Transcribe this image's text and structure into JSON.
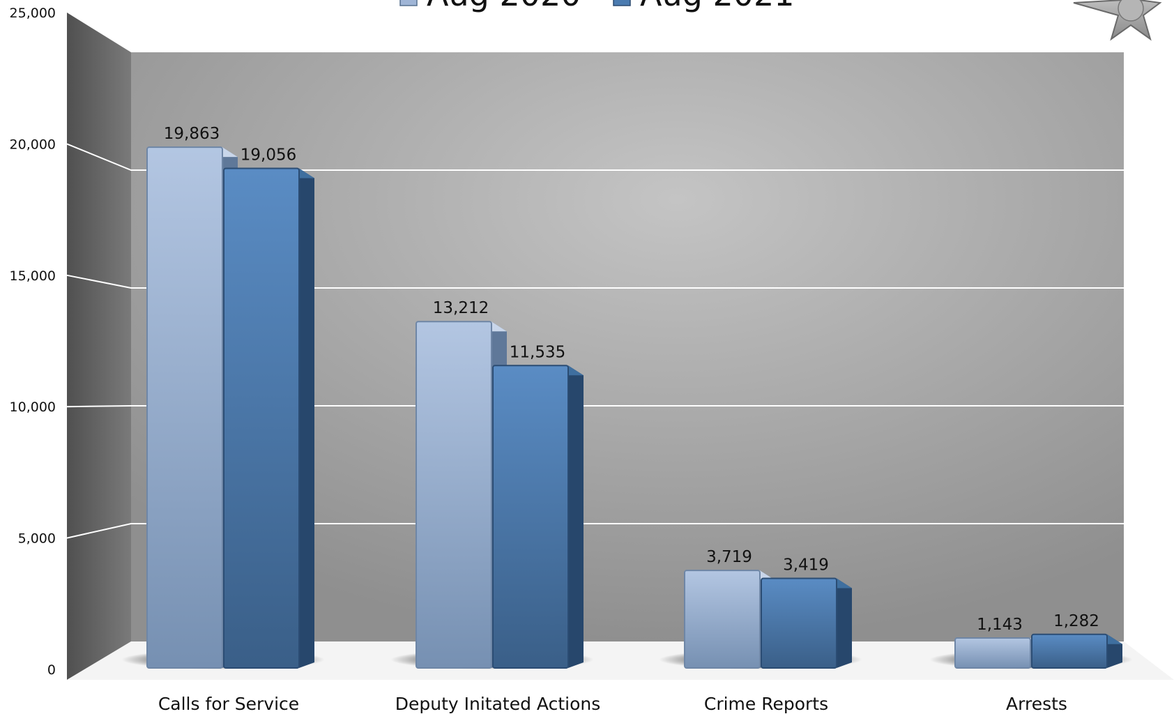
{
  "chart_data": {
    "type": "bar",
    "categories": [
      "Calls for Service",
      "Deputy Initated Actions",
      "Crime Reports",
      "Arrests"
    ],
    "series": [
      {
        "name": "Aug 2020",
        "values": [
          19863,
          13212,
          3719,
          1143
        ]
      },
      {
        "name": "Aug 2021",
        "values": [
          19056,
          11535,
          3419,
          1282
        ]
      }
    ],
    "data_labels": [
      [
        "19,863",
        "13,212",
        "3,719",
        "1,143"
      ],
      [
        "19,056",
        "11,535",
        "3,419",
        "1,282"
      ]
    ],
    "y_ticks": [
      0,
      5000,
      10000,
      15000,
      20000,
      25000
    ],
    "y_tick_labels": [
      "0",
      "5,000",
      "10,000",
      "15,000",
      "20,000",
      "25,000"
    ],
    "ylim": [
      0,
      25000
    ],
    "title": "",
    "xlabel": "",
    "ylabel": "",
    "grid": true,
    "legend_position": "top",
    "style": "3d-clustered-column",
    "colors": {
      "series_light": "#9fb5d6",
      "series_dark": "#4a7bb0",
      "wall": "#a9a9a9",
      "gridline": "#ffffff"
    }
  },
  "logo": {
    "icon": "sheriff-star-badge-icon"
  }
}
